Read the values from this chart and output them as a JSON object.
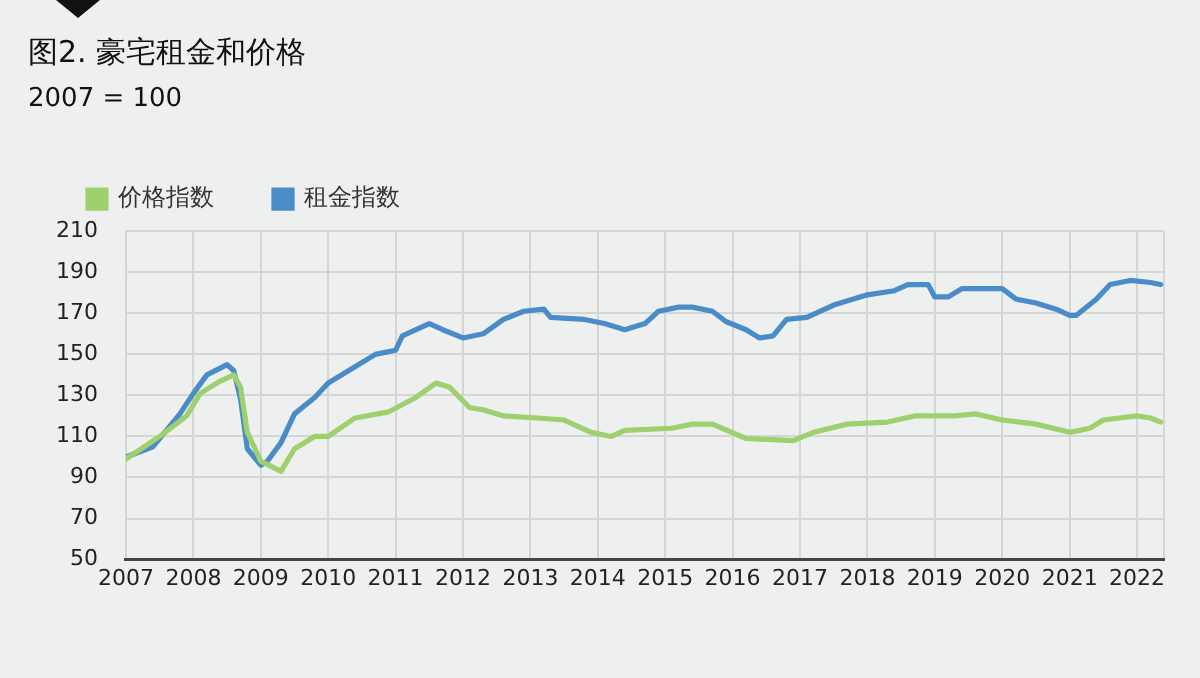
{
  "chart_data": {
    "type": "line",
    "title": "图2. 豪宅租金和价格",
    "subtitle": "2007 = 100",
    "xlim": [
      2007,
      2022.4
    ],
    "xticks": [
      2007,
      2008,
      2009,
      2010,
      2011,
      2012,
      2013,
      2014,
      2015,
      2016,
      2017,
      2018,
      2019,
      2020,
      2021,
      2022,
      {
        "value": 2022.4,
        "label": null
      }
    ],
    "ylim": [
      50,
      210
    ],
    "yticks": [
      50,
      70,
      90,
      110,
      130,
      150,
      170,
      190,
      210
    ],
    "grid": true,
    "legend": "top left",
    "marker": "none",
    "line_style": "solid",
    "series": [
      {
        "name": "价格指数",
        "color": "#9fd06f",
        "x": [
          2007,
          2007.5,
          2007.9,
          2008.1,
          2008.4,
          2008.6,
          2008.7,
          2008.8,
          2009,
          2009.3,
          2009.5,
          2009.8,
          2010,
          2010.4,
          2010.9,
          2011.3,
          2011.6,
          2011.8,
          2012.1,
          2012.3,
          2012.6,
          2013.1,
          2013.5,
          2013.9,
          2014.2,
          2014.4,
          2015.1,
          2015.4,
          2015.7,
          2016.2,
          2016.9,
          2017.2,
          2017.7,
          2018.3,
          2018.7,
          2019.3,
          2019.6,
          2020,
          2020.5,
          2021,
          2021.3,
          2021.5,
          2022,
          2022.2,
          2022.35
        ],
        "values": [
          99,
          110,
          120,
          131,
          137,
          140,
          134,
          112,
          98,
          93,
          104,
          110,
          110,
          119,
          122,
          129,
          136,
          134,
          124,
          123,
          120,
          119,
          118,
          112,
          110,
          113,
          114,
          116,
          116,
          109,
          108,
          112,
          116,
          117,
          120,
          120,
          121,
          118,
          116,
          112,
          114,
          118,
          120,
          119,
          117
        ]
      },
      {
        "name": "租金指数",
        "color": "#4a8cc8",
        "x": [
          2007,
          2007.4,
          2007.8,
          2008,
          2008.2,
          2008.5,
          2008.6,
          2008.7,
          2008.8,
          2009,
          2009.1,
          2009.3,
          2009.5,
          2009.8,
          2010,
          2010.3,
          2010.7,
          2011,
          2011.1,
          2011.5,
          2011.7,
          2012,
          2012.3,
          2012.6,
          2012.9,
          2013.2,
          2013.3,
          2013.8,
          2014.1,
          2014.4,
          2014.7,
          2014.9,
          2015.2,
          2015.4,
          2015.7,
          2015.9,
          2016.2,
          2016.4,
          2016.6,
          2016.8,
          2017.1,
          2017.5,
          2018,
          2018.4,
          2018.6,
          2018.9,
          2019,
          2019.2,
          2019.4,
          2019.6,
          2020,
          2020.2,
          2020.5,
          2020.8,
          2021,
          2021.1,
          2021.4,
          2021.6,
          2021.9,
          2022.2,
          2022.35
        ],
        "values": [
          100,
          105,
          121,
          131,
          140,
          145,
          142,
          128,
          104,
          96,
          98,
          107,
          121,
          129,
          136,
          142,
          150,
          152,
          159,
          165,
          162,
          158,
          160,
          167,
          171,
          172,
          168,
          167,
          165,
          162,
          165,
          171,
          173,
          173,
          171,
          166,
          162,
          158,
          159,
          167,
          168,
          174,
          179,
          181,
          184,
          184,
          178,
          178,
          182,
          182,
          182,
          177,
          175,
          172,
          169,
          169,
          177,
          184,
          186,
          185,
          184
        ]
      }
    ]
  }
}
